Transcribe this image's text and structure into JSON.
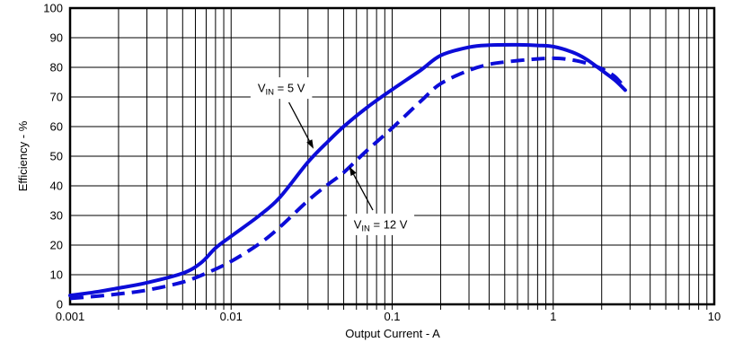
{
  "figure": {
    "background_color": "#ffffff",
    "grid_color": "#000000",
    "curve_color": "#0c0cd8",
    "text_color": "#000000"
  },
  "chart_data": {
    "type": "line",
    "title": "",
    "xlabel": "Output Current - A",
    "ylabel": "Efficiency - %",
    "x_scale": "log",
    "xlim": [
      0.001,
      10
    ],
    "ylim": [
      0,
      100
    ],
    "x_tick_labels": [
      "0.001",
      "0.01",
      "0.1",
      "1",
      "10"
    ],
    "y_tick_labels": [
      "0",
      "10",
      "20",
      "30",
      "40",
      "50",
      "60",
      "70",
      "80",
      "90",
      "100"
    ],
    "grid": {
      "horizontal": "major-every-10",
      "vertical": "log-decades-with-minor-lines",
      "minor_ticks_below_x_axis": true
    },
    "legend_position": "none (inline annotations with arrows)",
    "series": [
      {
        "name": "VIN = 5 V",
        "line_style": "solid",
        "color": "#0c0cd8",
        "points": [
          [
            0.001,
            3
          ],
          [
            0.0015,
            4.3
          ],
          [
            0.002,
            5.5
          ],
          [
            0.003,
            7.3
          ],
          [
            0.005,
            10.5
          ],
          [
            0.0065,
            14
          ],
          [
            0.008,
            19
          ],
          [
            0.01,
            23
          ],
          [
            0.015,
            30
          ],
          [
            0.02,
            36
          ],
          [
            0.03,
            48
          ],
          [
            0.04,
            55
          ],
          [
            0.05,
            60
          ],
          [
            0.07,
            66.5
          ],
          [
            0.1,
            72.5
          ],
          [
            0.15,
            79
          ],
          [
            0.2,
            84
          ],
          [
            0.3,
            86.8
          ],
          [
            0.4,
            87.5
          ],
          [
            0.6,
            87.6
          ],
          [
            0.8,
            87.4
          ],
          [
            1,
            87
          ],
          [
            1.3,
            85.2
          ],
          [
            1.6,
            82.8
          ],
          [
            2,
            79
          ],
          [
            2.4,
            75.8
          ],
          [
            2.8,
            72.3
          ]
        ]
      },
      {
        "name": "VIN = 12 V",
        "line_style": "dashed",
        "color": "#0c0cd8",
        "points": [
          [
            0.001,
            2
          ],
          [
            0.0015,
            2.8
          ],
          [
            0.002,
            3.5
          ],
          [
            0.003,
            4.8
          ],
          [
            0.005,
            7.5
          ],
          [
            0.007,
            10.5
          ],
          [
            0.01,
            14.5
          ],
          [
            0.015,
            20.5
          ],
          [
            0.02,
            26
          ],
          [
            0.03,
            35
          ],
          [
            0.04,
            40.5
          ],
          [
            0.05,
            44.5
          ],
          [
            0.07,
            52
          ],
          [
            0.1,
            59.5
          ],
          [
            0.15,
            68.5
          ],
          [
            0.2,
            74.5
          ],
          [
            0.3,
            79
          ],
          [
            0.4,
            81
          ],
          [
            0.5,
            81.8
          ],
          [
            0.7,
            82.6
          ],
          [
            0.9,
            83
          ],
          [
            1.1,
            83
          ],
          [
            1.4,
            82.2
          ],
          [
            1.7,
            81
          ],
          [
            2,
            79.5
          ],
          [
            2.4,
            77
          ],
          [
            2.75,
            73.5
          ]
        ]
      }
    ],
    "annotations": [
      {
        "pre": "V",
        "sub": "IN",
        "post": " = 5 V",
        "label_x": 0.0205,
        "label_y": 73,
        "target_x": 0.0325,
        "target_y": 52.5
      },
      {
        "pre": "V",
        "sub": "IN",
        "post": " = 12 V",
        "label_x": 0.0847,
        "label_y": 27,
        "target_x": 0.0542,
        "target_y": 46.5
      }
    ]
  }
}
